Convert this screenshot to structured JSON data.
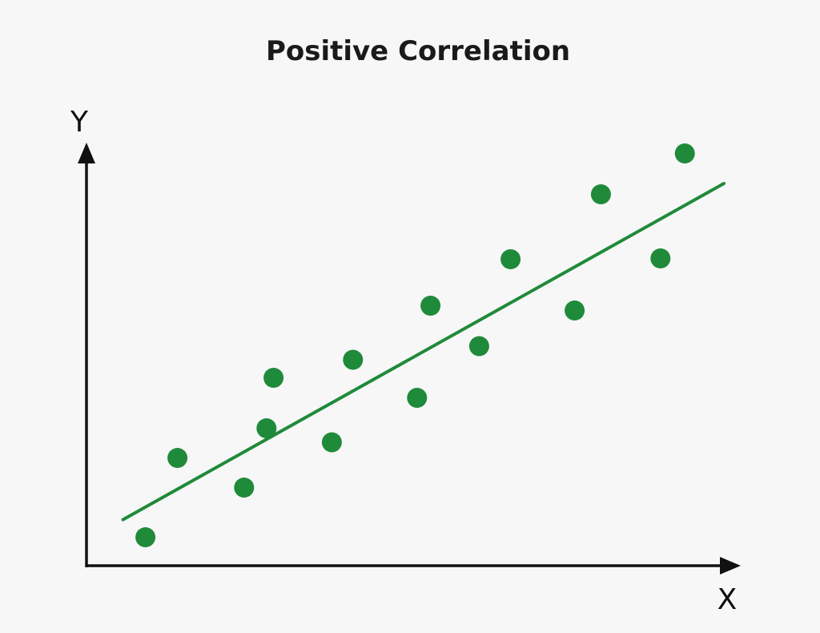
{
  "chart_data": {
    "type": "scatter",
    "title": "Positive Correlation",
    "xlabel": "X",
    "ylabel": "Y",
    "xlim": [
      0,
      10
    ],
    "ylim": [
      0,
      10
    ],
    "grid": false,
    "legend": "none",
    "colors": {
      "points": "#1f8a3a",
      "trendline": "#1f8a3a",
      "axes": "#111111",
      "background": "#f7f7f7"
    },
    "points": [
      {
        "x": 0.92,
        "y": 0.71
      },
      {
        "x": 1.42,
        "y": 2.69
      },
      {
        "x": 2.46,
        "y": 1.95
      },
      {
        "x": 2.81,
        "y": 3.43
      },
      {
        "x": 2.92,
        "y": 4.69
      },
      {
        "x": 3.83,
        "y": 3.08
      },
      {
        "x": 4.16,
        "y": 5.14
      },
      {
        "x": 5.16,
        "y": 4.19
      },
      {
        "x": 5.37,
        "y": 6.49
      },
      {
        "x": 6.13,
        "y": 5.48
      },
      {
        "x": 6.62,
        "y": 7.65
      },
      {
        "x": 7.62,
        "y": 6.37
      },
      {
        "x": 8.03,
        "y": 9.27
      },
      {
        "x": 8.96,
        "y": 7.67
      },
      {
        "x": 9.34,
        "y": 10.29
      }
    ],
    "trendline": {
      "x": [
        0.57,
        9.95
      ],
      "y": [
        1.15,
        9.54
      ]
    }
  }
}
